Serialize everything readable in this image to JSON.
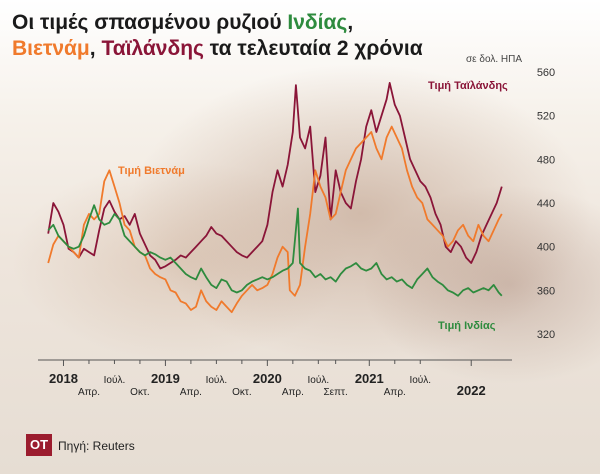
{
  "title": {
    "line1_prefix": "Οι τιμές σπασμένου ρυζιού ",
    "india": "Ινδίας",
    "comma1": ",",
    "vietnam": "Βιετνάμ",
    "comma2": ", ",
    "thailand": "Ταϊλάνδης",
    "suffix": " τα τελευταία 2 χρόνια"
  },
  "unit_label": "σε δολ. ΗΠΑ",
  "footer": {
    "logo": "OT",
    "source": "Πηγή: Reuters"
  },
  "colors": {
    "india": "#2e8b3e",
    "vietnam": "#f07a2c",
    "thailand": "#8a1538",
    "text": "#1a1a1a"
  },
  "chart_data": {
    "type": "line",
    "title": "Οι τιμές σπασμένου ρυζιού Ινδίας, Βιετνάμ, Ταϊλάνδης τα τελευταία 2 χρόνια",
    "ylabel": "σε δολ. ΗΠΑ",
    "ylim": [
      320,
      560
    ],
    "xlim": [
      2017.75,
      2022.4
    ],
    "yticks": [
      320,
      360,
      400,
      440,
      480,
      520,
      560
    ],
    "grid": false,
    "x_labels": [
      {
        "x": 2018.0,
        "text": "2018",
        "bold": true,
        "row": 0
      },
      {
        "x": 2018.25,
        "text": "Απρ.",
        "bold": false,
        "row": 1
      },
      {
        "x": 2018.5,
        "text": "Ιούλ.",
        "bold": false,
        "row": 0
      },
      {
        "x": 2018.75,
        "text": "Οκτ.",
        "bold": false,
        "row": 1
      },
      {
        "x": 2019.0,
        "text": "2019",
        "bold": true,
        "row": 0
      },
      {
        "x": 2019.25,
        "text": "Απρ.",
        "bold": false,
        "row": 1
      },
      {
        "x": 2019.5,
        "text": "Ιούλ.",
        "bold": false,
        "row": 0
      },
      {
        "x": 2019.75,
        "text": "Οκτ.",
        "bold": false,
        "row": 1
      },
      {
        "x": 2020.0,
        "text": "2020",
        "bold": true,
        "row": 0
      },
      {
        "x": 2020.25,
        "text": "Απρ.",
        "bold": false,
        "row": 1
      },
      {
        "x": 2020.5,
        "text": "Ιούλ.",
        "bold": false,
        "row": 0
      },
      {
        "x": 2020.67,
        "text": "Σεπτ.",
        "bold": false,
        "row": 1
      },
      {
        "x": 2021.0,
        "text": "2021",
        "bold": true,
        "row": 0
      },
      {
        "x": 2021.25,
        "text": "Απρ.",
        "bold": false,
        "row": 1
      },
      {
        "x": 2021.5,
        "text": "Ιούλ.",
        "bold": false,
        "row": 0
      },
      {
        "x": 2022.0,
        "text": "2022",
        "bold": true,
        "row": 1
      }
    ],
    "series": [
      {
        "name": "Τιμή Ταϊλάνδης",
        "color": "#8a1538",
        "points": [
          [
            2017.85,
            412
          ],
          [
            2017.9,
            440
          ],
          [
            2017.95,
            432
          ],
          [
            2018.0,
            420
          ],
          [
            2018.05,
            398
          ],
          [
            2018.1,
            395
          ],
          [
            2018.15,
            390
          ],
          [
            2018.2,
            398
          ],
          [
            2018.25,
            395
          ],
          [
            2018.3,
            392
          ],
          [
            2018.35,
            415
          ],
          [
            2018.4,
            435
          ],
          [
            2018.45,
            442
          ],
          [
            2018.5,
            432
          ],
          [
            2018.55,
            425
          ],
          [
            2018.6,
            428
          ],
          [
            2018.65,
            420
          ],
          [
            2018.7,
            430
          ],
          [
            2018.75,
            412
          ],
          [
            2018.8,
            402
          ],
          [
            2018.85,
            392
          ],
          [
            2018.9,
            388
          ],
          [
            2018.95,
            380
          ],
          [
            2019.0,
            382
          ],
          [
            2019.05,
            385
          ],
          [
            2019.1,
            388
          ],
          [
            2019.15,
            392
          ],
          [
            2019.2,
            390
          ],
          [
            2019.25,
            395
          ],
          [
            2019.3,
            400
          ],
          [
            2019.35,
            405
          ],
          [
            2019.4,
            410
          ],
          [
            2019.45,
            418
          ],
          [
            2019.5,
            412
          ],
          [
            2019.55,
            410
          ],
          [
            2019.6,
            405
          ],
          [
            2019.65,
            400
          ],
          [
            2019.7,
            395
          ],
          [
            2019.75,
            392
          ],
          [
            2019.8,
            390
          ],
          [
            2019.85,
            395
          ],
          [
            2019.9,
            400
          ],
          [
            2019.95,
            405
          ],
          [
            2020.0,
            420
          ],
          [
            2020.05,
            450
          ],
          [
            2020.1,
            470
          ],
          [
            2020.15,
            455
          ],
          [
            2020.2,
            475
          ],
          [
            2020.25,
            505
          ],
          [
            2020.28,
            548
          ],
          [
            2020.32,
            500
          ],
          [
            2020.37,
            490
          ],
          [
            2020.42,
            510
          ],
          [
            2020.47,
            450
          ],
          [
            2020.52,
            465
          ],
          [
            2020.57,
            500
          ],
          [
            2020.62,
            425
          ],
          [
            2020.67,
            470
          ],
          [
            2020.72,
            450
          ],
          [
            2020.77,
            440
          ],
          [
            2020.82,
            435
          ],
          [
            2020.87,
            460
          ],
          [
            2020.92,
            480
          ],
          [
            2020.97,
            510
          ],
          [
            2021.02,
            525
          ],
          [
            2021.07,
            505
          ],
          [
            2021.12,
            520
          ],
          [
            2021.17,
            535
          ],
          [
            2021.2,
            550
          ],
          [
            2021.25,
            530
          ],
          [
            2021.3,
            520
          ],
          [
            2021.35,
            500
          ],
          [
            2021.4,
            480
          ],
          [
            2021.45,
            470
          ],
          [
            2021.5,
            460
          ],
          [
            2021.55,
            455
          ],
          [
            2021.6,
            445
          ],
          [
            2021.65,
            430
          ],
          [
            2021.7,
            420
          ],
          [
            2021.75,
            400
          ],
          [
            2021.8,
            395
          ],
          [
            2021.85,
            405
          ],
          [
            2021.9,
            400
          ],
          [
            2021.95,
            390
          ],
          [
            2022.0,
            385
          ],
          [
            2022.05,
            395
          ],
          [
            2022.1,
            410
          ],
          [
            2022.15,
            420
          ],
          [
            2022.2,
            430
          ],
          [
            2022.25,
            440
          ],
          [
            2022.3,
            455
          ]
        ]
      },
      {
        "name": "Τιμή Βιετνάμ",
        "color": "#f07a2c",
        "points": [
          [
            2017.85,
            385
          ],
          [
            2017.9,
            402
          ],
          [
            2017.95,
            410
          ],
          [
            2018.0,
            405
          ],
          [
            2018.05,
            400
          ],
          [
            2018.1,
            395
          ],
          [
            2018.15,
            390
          ],
          [
            2018.2,
            420
          ],
          [
            2018.25,
            430
          ],
          [
            2018.3,
            425
          ],
          [
            2018.35,
            430
          ],
          [
            2018.4,
            460
          ],
          [
            2018.45,
            470
          ],
          [
            2018.5,
            455
          ],
          [
            2018.55,
            440
          ],
          [
            2018.6,
            420
          ],
          [
            2018.65,
            415
          ],
          [
            2018.7,
            400
          ],
          [
            2018.75,
            395
          ],
          [
            2018.8,
            392
          ],
          [
            2018.85,
            380
          ],
          [
            2018.9,
            375
          ],
          [
            2018.95,
            372
          ],
          [
            2019.0,
            370
          ],
          [
            2019.05,
            360
          ],
          [
            2019.1,
            358
          ],
          [
            2019.15,
            350
          ],
          [
            2019.2,
            348
          ],
          [
            2019.25,
            342
          ],
          [
            2019.3,
            345
          ],
          [
            2019.35,
            360
          ],
          [
            2019.4,
            350
          ],
          [
            2019.45,
            345
          ],
          [
            2019.5,
            342
          ],
          [
            2019.55,
            350
          ],
          [
            2019.6,
            345
          ],
          [
            2019.65,
            340
          ],
          [
            2019.7,
            348
          ],
          [
            2019.75,
            355
          ],
          [
            2019.8,
            360
          ],
          [
            2019.85,
            365
          ],
          [
            2019.9,
            360
          ],
          [
            2019.95,
            362
          ],
          [
            2020.0,
            365
          ],
          [
            2020.05,
            375
          ],
          [
            2020.1,
            390
          ],
          [
            2020.15,
            400
          ],
          [
            2020.2,
            395
          ],
          [
            2020.22,
            360
          ],
          [
            2020.27,
            355
          ],
          [
            2020.32,
            365
          ],
          [
            2020.37,
            400
          ],
          [
            2020.42,
            430
          ],
          [
            2020.47,
            470
          ],
          [
            2020.52,
            455
          ],
          [
            2020.57,
            445
          ],
          [
            2020.62,
            425
          ],
          [
            2020.67,
            430
          ],
          [
            2020.72,
            450
          ],
          [
            2020.77,
            470
          ],
          [
            2020.82,
            480
          ],
          [
            2020.87,
            490
          ],
          [
            2020.92,
            495
          ],
          [
            2020.97,
            500
          ],
          [
            2021.02,
            505
          ],
          [
            2021.07,
            490
          ],
          [
            2021.12,
            480
          ],
          [
            2021.17,
            500
          ],
          [
            2021.22,
            510
          ],
          [
            2021.27,
            500
          ],
          [
            2021.32,
            490
          ],
          [
            2021.37,
            470
          ],
          [
            2021.42,
            455
          ],
          [
            2021.47,
            445
          ],
          [
            2021.52,
            440
          ],
          [
            2021.57,
            425
          ],
          [
            2021.62,
            420
          ],
          [
            2021.67,
            415
          ],
          [
            2021.72,
            410
          ],
          [
            2021.77,
            400
          ],
          [
            2021.82,
            405
          ],
          [
            2021.87,
            415
          ],
          [
            2021.92,
            420
          ],
          [
            2021.97,
            410
          ],
          [
            2022.02,
            405
          ],
          [
            2022.07,
            420
          ],
          [
            2022.12,
            410
          ],
          [
            2022.17,
            405
          ],
          [
            2022.22,
            415
          ],
          [
            2022.27,
            425
          ],
          [
            2022.3,
            430
          ]
        ]
      },
      {
        "name": "Τιμή Ινδίας",
        "color": "#2e8b3e",
        "points": [
          [
            2017.85,
            415
          ],
          [
            2017.9,
            420
          ],
          [
            2017.95,
            410
          ],
          [
            2018.0,
            405
          ],
          [
            2018.05,
            400
          ],
          [
            2018.1,
            398
          ],
          [
            2018.15,
            400
          ],
          [
            2018.2,
            410
          ],
          [
            2018.25,
            425
          ],
          [
            2018.3,
            438
          ],
          [
            2018.35,
            425
          ],
          [
            2018.4,
            420
          ],
          [
            2018.45,
            422
          ],
          [
            2018.5,
            430
          ],
          [
            2018.55,
            425
          ],
          [
            2018.6,
            410
          ],
          [
            2018.65,
            405
          ],
          [
            2018.7,
            400
          ],
          [
            2018.75,
            395
          ],
          [
            2018.8,
            392
          ],
          [
            2018.85,
            395
          ],
          [
            2018.9,
            393
          ],
          [
            2018.95,
            390
          ],
          [
            2019.0,
            388
          ],
          [
            2019.05,
            390
          ],
          [
            2019.1,
            385
          ],
          [
            2019.15,
            380
          ],
          [
            2019.2,
            375
          ],
          [
            2019.25,
            372
          ],
          [
            2019.3,
            370
          ],
          [
            2019.35,
            380
          ],
          [
            2019.4,
            372
          ],
          [
            2019.45,
            365
          ],
          [
            2019.5,
            362
          ],
          [
            2019.55,
            370
          ],
          [
            2019.6,
            368
          ],
          [
            2019.65,
            360
          ],
          [
            2019.7,
            358
          ],
          [
            2019.75,
            360
          ],
          [
            2019.8,
            365
          ],
          [
            2019.85,
            368
          ],
          [
            2019.9,
            370
          ],
          [
            2019.95,
            372
          ],
          [
            2020.0,
            370
          ],
          [
            2020.05,
            372
          ],
          [
            2020.1,
            375
          ],
          [
            2020.15,
            378
          ],
          [
            2020.2,
            380
          ],
          [
            2020.25,
            385
          ],
          [
            2020.3,
            435
          ],
          [
            2020.32,
            385
          ],
          [
            2020.37,
            380
          ],
          [
            2020.42,
            378
          ],
          [
            2020.47,
            372
          ],
          [
            2020.52,
            375
          ],
          [
            2020.57,
            370
          ],
          [
            2020.62,
            372
          ],
          [
            2020.67,
            368
          ],
          [
            2020.72,
            375
          ],
          [
            2020.77,
            380
          ],
          [
            2020.82,
            382
          ],
          [
            2020.87,
            385
          ],
          [
            2020.92,
            380
          ],
          [
            2020.97,
            378
          ],
          [
            2021.02,
            380
          ],
          [
            2021.07,
            385
          ],
          [
            2021.12,
            375
          ],
          [
            2021.17,
            370
          ],
          [
            2021.22,
            372
          ],
          [
            2021.27,
            368
          ],
          [
            2021.32,
            370
          ],
          [
            2021.37,
            365
          ],
          [
            2021.42,
            362
          ],
          [
            2021.47,
            370
          ],
          [
            2021.52,
            375
          ],
          [
            2021.57,
            380
          ],
          [
            2021.62,
            372
          ],
          [
            2021.67,
            368
          ],
          [
            2021.72,
            365
          ],
          [
            2021.77,
            360
          ],
          [
            2021.82,
            358
          ],
          [
            2021.87,
            355
          ],
          [
            2021.92,
            360
          ],
          [
            2021.97,
            362
          ],
          [
            2022.02,
            358
          ],
          [
            2022.07,
            360
          ],
          [
            2022.12,
            362
          ],
          [
            2022.17,
            360
          ],
          [
            2022.22,
            365
          ],
          [
            2022.27,
            358
          ],
          [
            2022.3,
            355
          ]
        ]
      }
    ]
  }
}
